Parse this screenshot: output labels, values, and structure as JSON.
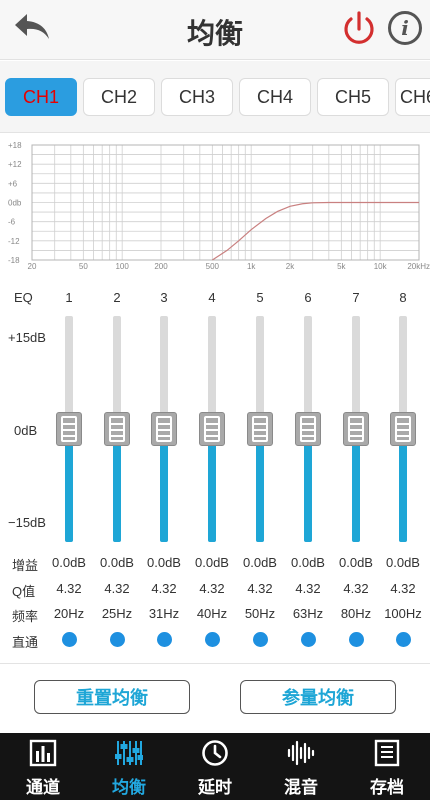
{
  "header": {
    "title": "均衡",
    "info_glyph": "i"
  },
  "tabs": [
    "CH1",
    "CH2",
    "CH3",
    "CH4",
    "CH5",
    "CH6"
  ],
  "active_tab": 0,
  "chart_data": {
    "type": "line",
    "title": "",
    "xlabel": "",
    "ylabel": "",
    "x_scale": "log",
    "x_ticks": [
      20,
      50,
      100,
      200,
      500,
      1000,
      2000,
      5000,
      10000,
      20000
    ],
    "x_tick_labels": [
      "20",
      "50",
      "100",
      "200",
      "500",
      "1k",
      "2k",
      "5k",
      "10k",
      "20kHz"
    ],
    "y_ticks": [
      18,
      12,
      6,
      0,
      -6,
      -12,
      -18
    ],
    "y_tick_labels": [
      "+18",
      "+12",
      "+6",
      "0db",
      "-6",
      "-12",
      "-18"
    ],
    "ylim": [
      -18,
      18
    ],
    "xlim": [
      20,
      20000
    ],
    "grid": true,
    "series": [
      {
        "x": [
          500,
          650,
          800,
          1000,
          1300,
          1600,
          2000,
          2500,
          3000,
          4000,
          5000,
          10000,
          20000
        ],
        "y": [
          -18,
          -15,
          -12,
          -8.5,
          -5,
          -2.8,
          -1.2,
          -0.4,
          -0.1,
          0,
          0,
          0,
          0
        ],
        "color": "#c98080"
      }
    ]
  },
  "eq": {
    "label": "EQ",
    "db_top": "+15dB",
    "db_mid": "0dB",
    "db_bot": "−15dB",
    "bands": [
      {
        "num": "1",
        "gain": "0.0dB",
        "q": "4.32",
        "freq": "20Hz",
        "level": 0.5
      },
      {
        "num": "2",
        "gain": "0.0dB",
        "q": "4.32",
        "freq": "25Hz",
        "level": 0.5
      },
      {
        "num": "3",
        "gain": "0.0dB",
        "q": "4.32",
        "freq": "31Hz",
        "level": 0.5
      },
      {
        "num": "4",
        "gain": "0.0dB",
        "q": "4.32",
        "freq": "40Hz",
        "level": 0.5
      },
      {
        "num": "5",
        "gain": "0.0dB",
        "q": "4.32",
        "freq": "50Hz",
        "level": 0.5
      },
      {
        "num": "6",
        "gain": "0.0dB",
        "q": "4.32",
        "freq": "63Hz",
        "level": 0.5
      },
      {
        "num": "7",
        "gain": "0.0dB",
        "q": "4.32",
        "freq": "80Hz",
        "level": 0.5
      },
      {
        "num": "8",
        "gain": "0.0dB",
        "q": "4.32",
        "freq": "100Hz",
        "level": 0.5
      }
    ],
    "row_labels": {
      "gain": "增益",
      "q": "Q值",
      "freq": "频率",
      "bypass": "直通"
    }
  },
  "buttons": {
    "reset": "重置均衡",
    "param": "参量均衡"
  },
  "nav": {
    "items": [
      {
        "label": "通道",
        "icon": "bar-chart-icon"
      },
      {
        "label": "均衡",
        "icon": "equalizer-sliders-icon"
      },
      {
        "label": "延时",
        "icon": "clock-icon"
      },
      {
        "label": "混音",
        "icon": "waveform-icon"
      },
      {
        "label": "存档",
        "icon": "save-document-icon"
      }
    ],
    "active": 1
  },
  "colors": {
    "accent": "#1ea6d6",
    "power": "#d32f2f",
    "tab_active_bg": "#2b9de0",
    "tab_active_text": "#e60000",
    "nav_bg": "#141414"
  }
}
